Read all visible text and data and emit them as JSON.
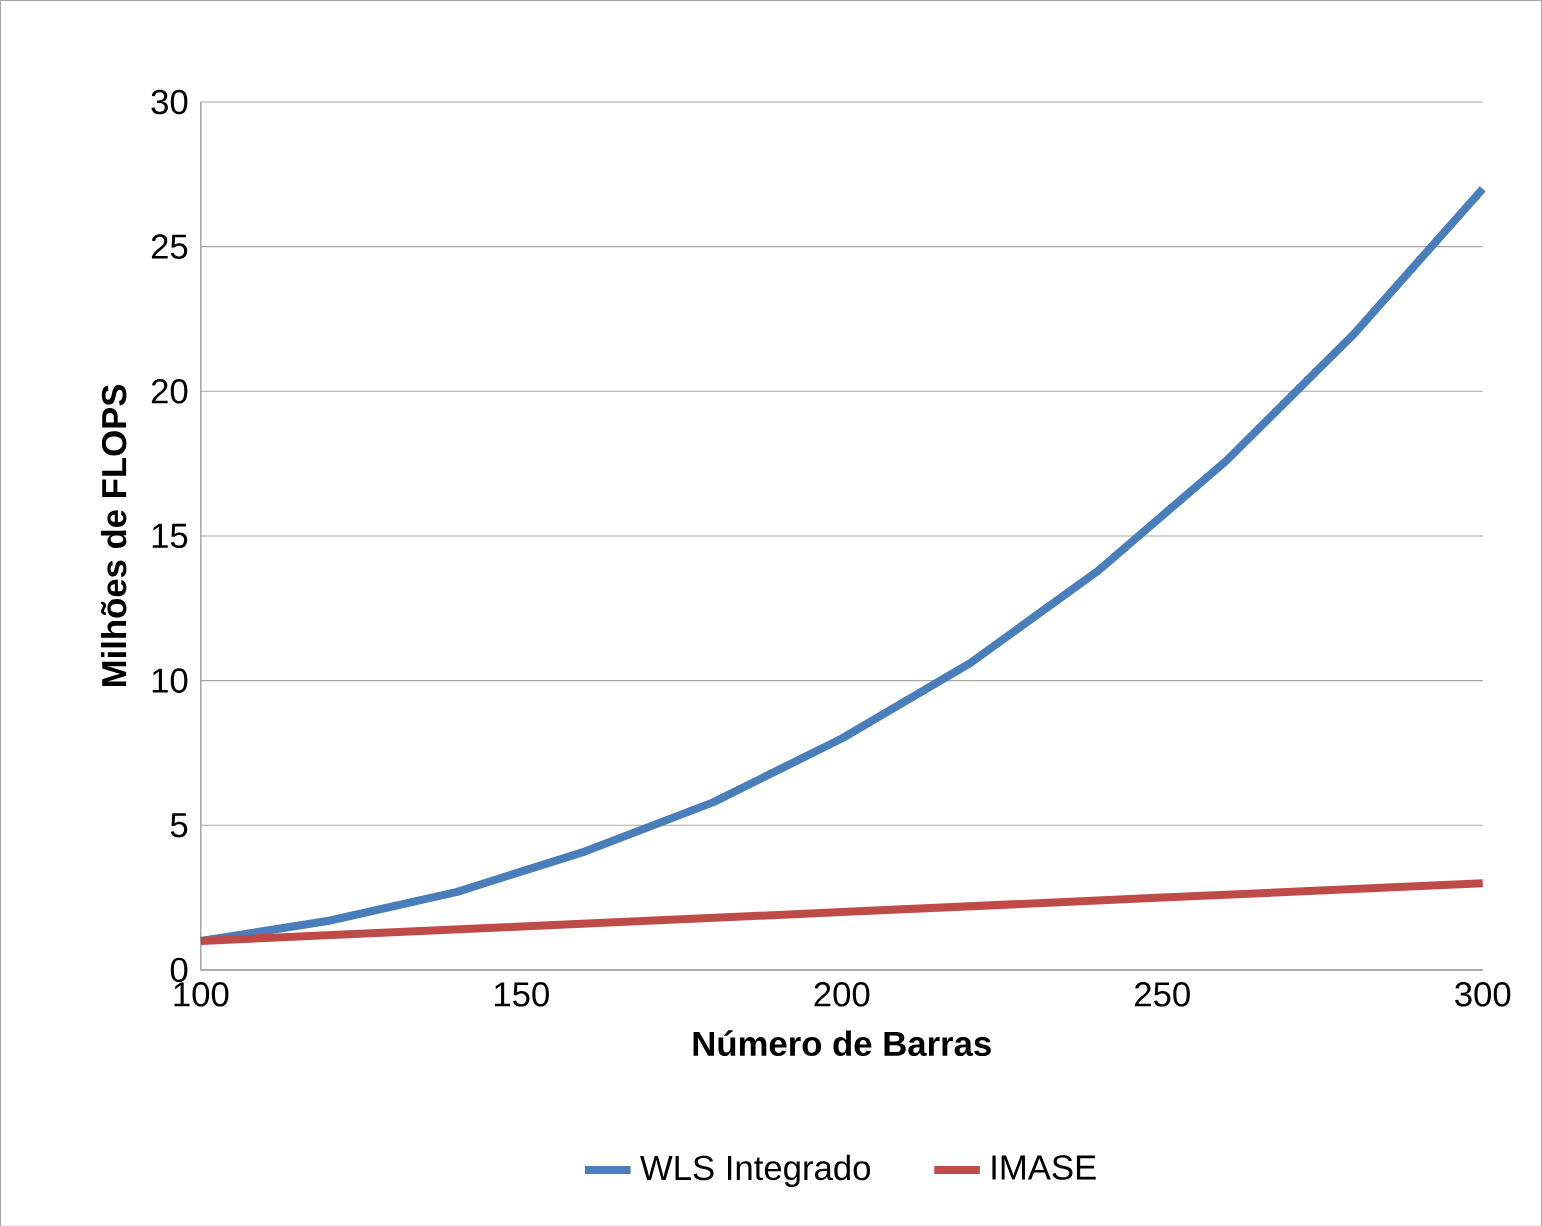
{
  "chart_data": {
    "type": "line",
    "xlabel": "Número de Barras",
    "ylabel": "Milhões de FLOPS",
    "xlim": [
      100,
      300
    ],
    "ylim": [
      0,
      30
    ],
    "xticks": [
      100,
      150,
      200,
      250,
      300
    ],
    "yticks": [
      0,
      5,
      10,
      15,
      20,
      25,
      30
    ],
    "grid": "y",
    "legend": "bottom",
    "marker": "none",
    "series": [
      {
        "name": "WLS Integrado",
        "color": "#4a7ebb",
        "x": [
          100,
          120,
          140,
          160,
          180,
          200,
          220,
          240,
          260,
          280,
          300
        ],
        "values": [
          1,
          1.7,
          2.7,
          4.1,
          5.8,
          8,
          10.6,
          13.8,
          17.6,
          22,
          27
        ]
      },
      {
        "name": "IMASE",
        "color": "#be4b48",
        "x": [
          100,
          150,
          200,
          250,
          300
        ],
        "values": [
          1,
          1.5,
          2,
          2.5,
          3
        ]
      }
    ]
  }
}
